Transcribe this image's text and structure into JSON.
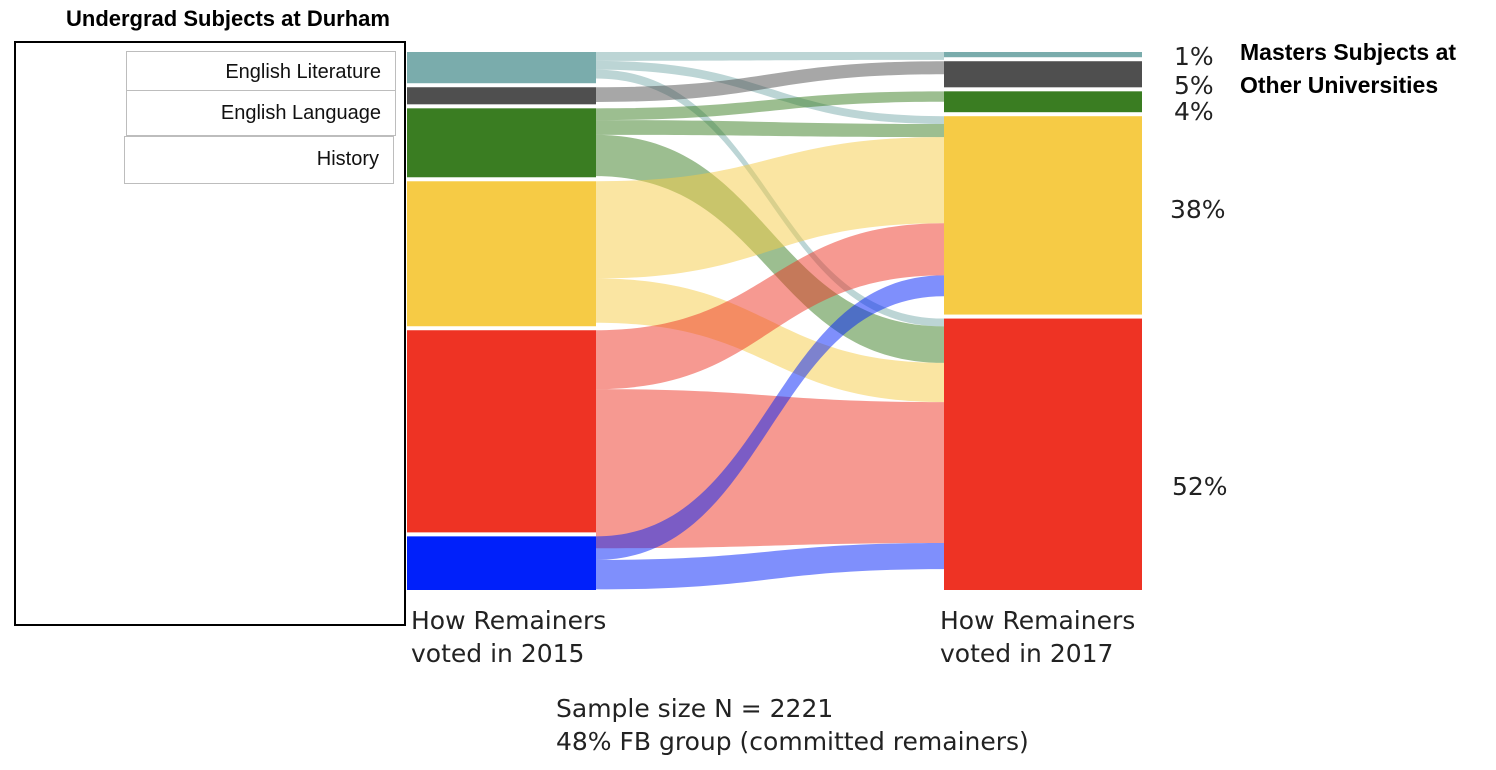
{
  "left_title": "Undergrad Subjects at Durham",
  "right_title": "Masters Subjects at Other Universities",
  "subjects": [
    "English Literature",
    "English Language",
    "History"
  ],
  "chart_data": {
    "type": "sankey",
    "title": "",
    "left_label": "How Remainers voted in 2015",
    "right_label": "How Remainers voted in 2017",
    "footer": [
      "Sample size N = 2221",
      "48% FB group (committed remainers)"
    ],
    "left_nodes": [
      {
        "id": "L1",
        "color": "#7aacac",
        "share": 5.3
      },
      {
        "id": "L2",
        "color": "#4f4f4f",
        "share": 2.9
      },
      {
        "id": "L3",
        "color": "#3a7d22",
        "share": 11.7
      },
      {
        "id": "L4",
        "color": "#f6cb45",
        "share": 24.6
      },
      {
        "id": "L5",
        "color": "#ee3324",
        "share": 34.3
      },
      {
        "id": "L6",
        "color": "#0020fa",
        "share": 9.1
      }
    ],
    "right_nodes": [
      {
        "id": "R1",
        "color": "#7aacac",
        "share": 1,
        "label": "1%"
      },
      {
        "id": "R2",
        "color": "#4f4f4f",
        "share": 5,
        "label": "5%"
      },
      {
        "id": "R3",
        "color": "#3a7d22",
        "share": 4,
        "label": "4%"
      },
      {
        "id": "R4",
        "color": "#f6cb45",
        "share": 38,
        "label": "38%"
      },
      {
        "id": "R5",
        "color": "#ee3324",
        "share": 52,
        "label": "52%"
      }
    ],
    "flows": [
      {
        "from": "L1",
        "to": "R1",
        "value": 1.5
      },
      {
        "from": "L1",
        "to": "R4",
        "value": 1.5
      },
      {
        "from": "L1",
        "to": "R5",
        "value": 1.5
      },
      {
        "from": "L2",
        "to": "R2",
        "value": 2.5
      },
      {
        "from": "L3",
        "to": "R3",
        "value": 2
      },
      {
        "from": "L3",
        "to": "R4",
        "value": 2.5
      },
      {
        "from": "L3",
        "to": "R5",
        "value": 7
      },
      {
        "from": "L4",
        "to": "R4",
        "value": 16.5
      },
      {
        "from": "L4",
        "to": "R5",
        "value": 7.5
      },
      {
        "from": "L5",
        "to": "R4",
        "value": 10
      },
      {
        "from": "L5",
        "to": "R5",
        "value": 27
      },
      {
        "from": "L6",
        "to": "R4",
        "value": 4
      },
      {
        "from": "L6",
        "to": "R5",
        "value": 5
      }
    ]
  }
}
